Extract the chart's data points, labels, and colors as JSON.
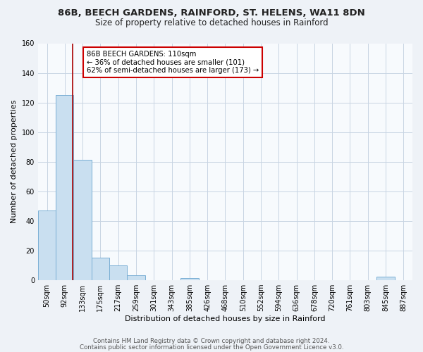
{
  "title": "86B, BEECH GARDENS, RAINFORD, ST. HELENS, WA11 8DN",
  "subtitle": "Size of property relative to detached houses in Rainford",
  "xlabel": "Distribution of detached houses by size in Rainford",
  "ylabel": "Number of detached properties",
  "bar_labels": [
    "50sqm",
    "92sqm",
    "133sqm",
    "175sqm",
    "217sqm",
    "259sqm",
    "301sqm",
    "343sqm",
    "385sqm",
    "426sqm",
    "468sqm",
    "510sqm",
    "552sqm",
    "594sqm",
    "636sqm",
    "678sqm",
    "720sqm",
    "761sqm",
    "803sqm",
    "845sqm",
    "887sqm"
  ],
  "bar_values": [
    47,
    125,
    81,
    15,
    10,
    3,
    0,
    0,
    1,
    0,
    0,
    0,
    0,
    0,
    0,
    0,
    0,
    0,
    0,
    2,
    0
  ],
  "bar_color": "#c9dff0",
  "bar_edge_color": "#7aafd4",
  "ylim": [
    0,
    160
  ],
  "yticks": [
    0,
    20,
    40,
    60,
    80,
    100,
    120,
    140,
    160
  ],
  "property_line_x": 1.44,
  "annotation_line1": "86B BEECH GARDENS: 110sqm",
  "annotation_line2": "← 36% of detached houses are smaller (101)",
  "annotation_line3": "62% of semi-detached houses are larger (173) →",
  "footer_line1": "Contains HM Land Registry data © Crown copyright and database right 2024.",
  "footer_line2": "Contains public sector information licensed under the Open Government Licence v3.0.",
  "bg_color": "#eef2f7",
  "plot_bg_color": "#f7fafd",
  "grid_color": "#c8d4e3",
  "title_fontsize": 9.5,
  "subtitle_fontsize": 8.5,
  "tick_fontsize": 7,
  "ylabel_fontsize": 8,
  "xlabel_fontsize": 8,
  "footer_fontsize": 6.2
}
